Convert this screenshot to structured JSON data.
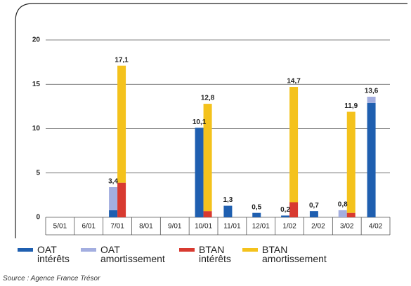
{
  "chart_data": {
    "type": "stacked-bar",
    "categories": [
      "5/01",
      "6/01",
      "7/01",
      "8/01",
      "9/01",
      "10/01",
      "11/01",
      "12/01",
      "1/02",
      "2/02",
      "3/02",
      "4/02"
    ],
    "series": [
      {
        "name": "OAT intérêts",
        "color": "#1f5fb0",
        "stack": "OAT",
        "values": [
          0,
          0,
          0.8,
          0,
          0,
          10.1,
          1.3,
          0.5,
          0.2,
          0.7,
          0,
          12.9
        ]
      },
      {
        "name": "OAT amortissement",
        "color": "#a3aee0",
        "stack": "OAT",
        "values": [
          0,
          0,
          2.6,
          0,
          0,
          0,
          0,
          0,
          0,
          0,
          0.8,
          0.7
        ]
      },
      {
        "name": "BTAN intérêts",
        "color": "#d83a30",
        "stack": "BTAN",
        "values": [
          0,
          0,
          3.9,
          0,
          0,
          0.7,
          0,
          0,
          1.7,
          0,
          0.5,
          0
        ]
      },
      {
        "name": "BTAN amortissement",
        "color": "#f4c21c",
        "stack": "BTAN",
        "values": [
          0,
          0,
          13.2,
          0,
          0,
          12.1,
          0,
          0,
          13.0,
          0,
          11.4,
          0
        ]
      }
    ],
    "stack_labels": {
      "OAT": [
        null,
        null,
        "3,4",
        null,
        null,
        "10,1",
        "1,3",
        "0,5",
        "0,2",
        "0,7",
        "0,8",
        "13,6"
      ],
      "BTAN": [
        null,
        null,
        "17,1",
        null,
        null,
        "12,8",
        null,
        null,
        "14,7",
        null,
        "11,9",
        null
      ]
    },
    "ylim": [
      0,
      20
    ],
    "yticks": [
      0,
      5,
      10,
      15,
      20
    ],
    "grid": true,
    "source": "Source : Agence France Trésor"
  }
}
